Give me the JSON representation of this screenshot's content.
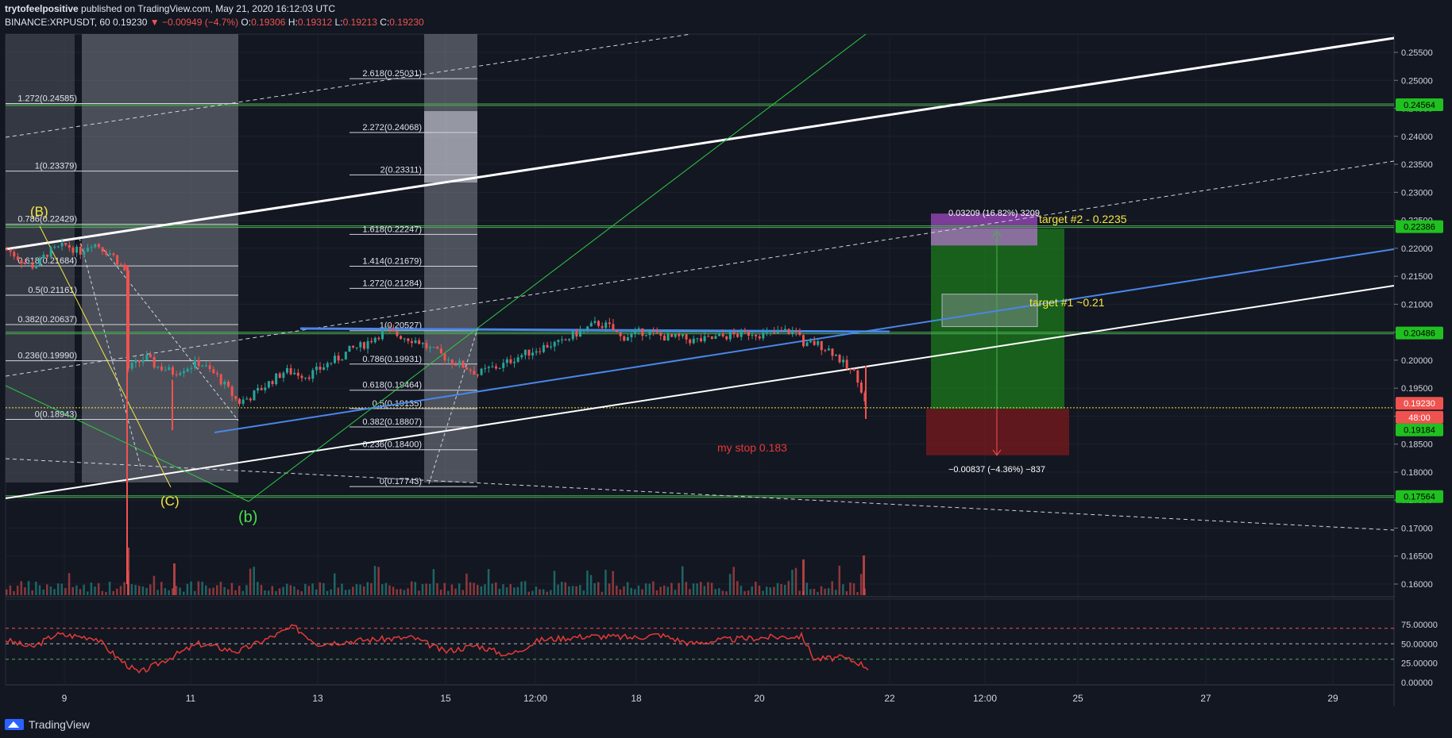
{
  "header": {
    "line1_author": "trytofeelpositive",
    "line1_rest": "published on TradingView.com, May 21, 2020 16:12:03 UTC",
    "symbol": "BINANCE:XRPUSDT, 60",
    "last": "0.19230",
    "change": "▼ −0.00949 (−4.7%)",
    "o_label": "O:",
    "o": "0.19306",
    "h_label": "H:",
    "h": "0.19312",
    "l_label": "L:",
    "l": "0.19213",
    "c_label": "C:",
    "c": "0.19230"
  },
  "colors": {
    "background": "#131722",
    "candle_up": "#26a69a",
    "candle_down": "#ef5350",
    "rsi": "#e53935",
    "trendline_white": "#ffffff",
    "trendline_blue": "#4a86e8",
    "level_green": "#4caf50"
  },
  "price_axis": {
    "ticks": [
      "0.25500",
      "0.25000",
      "0.24500",
      "0.24000",
      "0.23500",
      "0.23000",
      "0.22500",
      "0.22000",
      "0.21500",
      "0.21000",
      "0.20500",
      "0.20000",
      "0.19500",
      "0.19000",
      "0.18500",
      "0.18000",
      "0.17500",
      "0.17000",
      "0.16500",
      "0.16000"
    ],
    "badges": [
      {
        "label": "0.24564",
        "price": 0.24564,
        "kind": "green"
      },
      {
        "label": "0.22386",
        "price": 0.22386,
        "kind": "green"
      },
      {
        "label": "0.20486",
        "price": 0.20486,
        "kind": "green"
      },
      {
        "label": "0.19230",
        "price": 0.1923,
        "kind": "red"
      },
      {
        "label": "48:00",
        "price": 0.1898,
        "kind": "red"
      },
      {
        "label": "0.19184",
        "price": 0.18755,
        "kind": "green"
      },
      {
        "label": "0.17564",
        "price": 0.17564,
        "kind": "green"
      }
    ]
  },
  "rsi_axis": {
    "ticks": [
      "75.00000",
      "50.00000",
      "25.00000",
      "0.00000"
    ]
  },
  "time_axis": {
    "ticks": [
      "9",
      "11",
      "13",
      "15",
      "12:00",
      "18",
      "20",
      "22",
      "12:00",
      "25",
      "27",
      "29"
    ]
  },
  "annotations": {
    "wave_B": "(B)",
    "wave_C": "(C)",
    "wave_b": "(b)",
    "target2": "target #2 - 0.2235",
    "target1": "target #1 ~0.21",
    "stop": "my stop 0.183",
    "gain": "0.03209 (16.82%) 3209",
    "loss": "−0.00837 (−4.36%) −837"
  },
  "fib_left": [
    {
      "label": "1.272(0.24585)",
      "price": 0.24585
    },
    {
      "label": "1(0.23379)",
      "price": 0.23379
    },
    {
      "label": "0.786(0.22429)",
      "price": 0.22429
    },
    {
      "label": "0.618(0.21684)",
      "price": 0.21684
    },
    {
      "label": "0.5(0.21161)",
      "price": 0.21161
    },
    {
      "label": "0.382(0.20637)",
      "price": 0.20637
    },
    {
      "label": "0.236(0.19990)",
      "price": 0.1999
    },
    {
      "label": "0(0.18943)",
      "price": 0.18943
    }
  ],
  "fib_right": [
    {
      "label": "2.618(0.25031)",
      "price": 0.25031
    },
    {
      "label": "2.272(0.24068)",
      "price": 0.24068
    },
    {
      "label": "2(0.23311)",
      "price": 0.23311
    },
    {
      "label": "1.618(0.22247)",
      "price": 0.22247
    },
    {
      "label": "1.414(0.21679)",
      "price": 0.21679
    },
    {
      "label": "1.272(0.21284)",
      "price": 0.21284
    },
    {
      "label": "1(0.20527)",
      "price": 0.20527
    },
    {
      "label": "0.786(0.19931)",
      "price": 0.19931
    },
    {
      "label": "0.618(0.19464)",
      "price": 0.19464
    },
    {
      "label": "0.5(0.19135)",
      "price": 0.19135
    },
    {
      "label": "0.382(0.18807)",
      "price": 0.18807
    },
    {
      "label": "0.236(0.18400)",
      "price": 0.184
    },
    {
      "label": "0(0.17743)",
      "price": 0.17743
    }
  ],
  "footer": {
    "brand": "TradingView"
  },
  "chart_data": {
    "type": "candlestick",
    "symbol": "XRPUSDT",
    "timeframe": "60",
    "ylim": [
      0.1575,
      0.2575
    ],
    "rsi_levels": [
      70,
      50,
      30
    ],
    "horizontal_levels": [
      0.24564,
      0.22386,
      0.20486,
      0.17564
    ],
    "close_path": [
      [
        0.2198,
        0.219,
        0.218,
        0.2172,
        0.2168,
        0.2175,
        0.219,
        0.2196,
        0.22,
        0.2205,
        0.2201,
        0.2192,
        0.2202,
        0.221,
        0.2205,
        0.2196,
        0.219,
        0.2176,
        0.216
      ],
      [
        0.1985,
        0.1995,
        0.2005,
        0.199,
        0.1985,
        0.1978,
        0.1985,
        0.199,
        0.1996,
        0.1982,
        0.197,
        0.195,
        0.193
      ],
      [
        0.1925,
        0.1935,
        0.195,
        0.1965,
        0.198,
        0.1978,
        0.1972,
        0.1982,
        0.1995,
        0.2005,
        0.202,
        0.2026,
        0.204,
        0.2052,
        0.2046,
        0.204,
        0.2034,
        0.202,
        0.201,
        0.1998,
        0.199,
        0.198
      ],
      [
        0.1975,
        0.1985,
        0.199,
        0.2003,
        0.2012,
        0.202,
        0.2028,
        0.203,
        0.2045,
        0.2055,
        0.2066,
        0.206,
        0.204,
        0.2046,
        0.2052,
        0.2045,
        0.204,
        0.204,
        0.2035,
        0.2036,
        0.204,
        0.2044,
        0.2046,
        0.205,
        0.2045,
        0.2048,
        0.2052,
        0.205
      ],
      [
        0.202,
        0.203,
        0.203,
        0.2025,
        0.202,
        0.2012,
        0.2,
        0.1985,
        0.198,
        0.1965,
        0.1923
      ]
    ]
  }
}
